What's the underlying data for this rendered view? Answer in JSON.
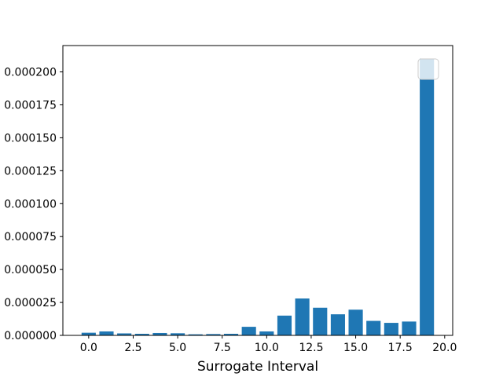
{
  "chart_data": {
    "type": "bar",
    "title": "",
    "xlabel": "Surrogate Interval",
    "ylabel": "",
    "x": [
      0,
      1,
      2,
      3,
      4,
      5,
      6,
      7,
      8,
      9,
      10,
      11,
      12,
      13,
      14,
      15,
      16,
      17,
      18,
      19
    ],
    "values": [
      2e-06,
      3e-06,
      1.5e-06,
      1.2e-06,
      1.8e-06,
      1.6e-06,
      8e-07,
      1e-06,
      1.2e-06,
      6.5e-06,
      3e-06,
      1.5e-05,
      2.8e-05,
      2.1e-05,
      1.6e-05,
      1.95e-05,
      1.1e-05,
      9.5e-06,
      1.05e-05,
      0.00021
    ],
    "xlim": [
      -1.45,
      20.45
    ],
    "ylim": [
      0,
      0.00022
    ],
    "xticks": [
      0,
      2.5,
      5,
      7.5,
      10,
      12.5,
      15,
      17.5,
      20
    ],
    "xtick_labels": [
      "0.0",
      "2.5",
      "5.0",
      "7.5",
      "10.0",
      "12.5",
      "15.0",
      "17.5",
      "20.0"
    ],
    "yticks": [
      0,
      2.5e-05,
      5e-05,
      7.5e-05,
      0.0001,
      0.000125,
      0.00015,
      0.000175,
      0.0002
    ],
    "ytick_labels": [
      "0.000000",
      "0.000025",
      "0.000050",
      "0.000075",
      "0.000100",
      "0.000125",
      "0.000150",
      "0.000175",
      "0.000200"
    ],
    "bar_color": "#1f77b4",
    "legend": {
      "placement": "upper-right",
      "entries": []
    },
    "grid": false
  }
}
